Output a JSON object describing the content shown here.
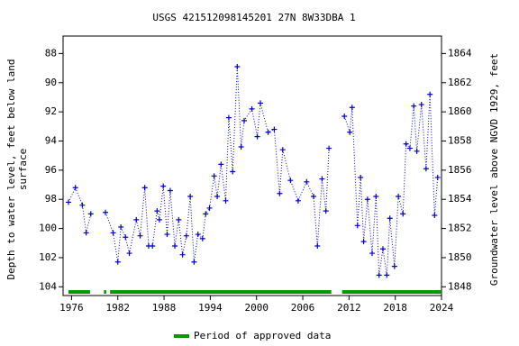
{
  "chart_data": {
    "type": "line",
    "title": "USGS 421512098145201  27N  8W33DBA 1",
    "ylabel": [
      "Depth to water level, feet below land",
      "surface"
    ],
    "y2label": "Groundwater level above NGVD 1929, feet",
    "xlim": [
      1974.9,
      2024.0
    ],
    "xticks": [
      1976,
      1982,
      1988,
      1994,
      2000,
      2006,
      2012,
      2018,
      2024
    ],
    "ylim": [
      104.6,
      86.8
    ],
    "yticks": [
      88,
      90,
      92,
      94,
      96,
      98,
      100,
      102,
      104
    ],
    "y2lim": [
      1847.4,
      1865.2
    ],
    "y2ticks": [
      1848,
      1850,
      1852,
      1854,
      1856,
      1858,
      1860,
      1862,
      1864
    ],
    "x": [
      1975.6,
      1976.5,
      1977.4,
      1977.9,
      1978.5,
      1979.5,
      1980.4,
      1981.4,
      1982.0,
      1982.4,
      1983.0,
      1983.5,
      1984.4,
      1984.9,
      1985.5,
      1986.0,
      1986.5,
      1987.1,
      1987.4,
      1987.9,
      1988.4,
      1988.8,
      1989.4,
      1989.9,
      1990.4,
      1990.9,
      1991.4,
      1991.9,
      1992.4,
      1993.0,
      1993.4,
      1993.9,
      1994.5,
      1994.9,
      1995.4,
      1996.0,
      1996.4,
      1996.9,
      1997.5,
      1998.0,
      1998.4,
      1999.4,
      2000.1,
      2000.5,
      2001.5,
      2002.3,
      2003.0,
      2003.4,
      2004.4,
      2005.4,
      2006.5,
      2007.4,
      2007.9,
      2008.5,
      2009.0,
      2009.4,
      2010.5,
      2011.4,
      2012.1,
      2012.4,
      2013.1,
      2013.5,
      2013.9,
      2014.4,
      2015.0,
      2015.5,
      2015.9,
      2016.4,
      2016.9,
      2017.3,
      2017.9,
      2018.4,
      2019.0,
      2019.4,
      2019.9,
      2020.4,
      2020.8,
      2021.4,
      2022.0,
      2022.5,
      2023.1,
      2023.5
    ],
    "series": [
      {
        "name": "Depth to water level",
        "color": "#0000cc",
        "values": [
          98.2,
          97.2,
          98.4,
          100.3,
          99.0,
          null,
          98.9,
          100.3,
          102.3,
          99.9,
          100.6,
          101.7,
          99.4,
          100.5,
          97.2,
          101.2,
          101.2,
          98.8,
          99.4,
          97.1,
          100.4,
          97.4,
          101.2,
          99.4,
          101.8,
          100.5,
          97.8,
          102.3,
          100.4,
          100.7,
          99.0,
          98.6,
          96.4,
          97.8,
          95.6,
          98.1,
          92.4,
          96.1,
          88.9,
          94.4,
          92.6,
          91.8,
          93.7,
          91.4,
          93.4,
          93.2,
          97.6,
          94.6,
          96.7,
          98.1,
          96.8,
          97.8,
          101.2,
          96.6,
          98.8,
          94.5,
          null,
          92.3,
          93.4,
          91.7,
          99.8,
          96.5,
          100.9,
          98.0,
          101.7,
          97.8,
          103.2,
          101.4,
          103.2,
          99.3,
          102.6,
          97.8,
          99.0,
          94.2,
          94.5,
          91.6,
          94.7,
          91.5,
          95.9,
          90.8,
          99.1,
          96.5
        ]
      }
    ],
    "approved": {
      "name": "Period of approved data",
      "color": "#009900",
      "periods": [
        [
          1975.6,
          1978.4
        ],
        [
          1980.2,
          1980.5
        ],
        [
          1981.0,
          2009.7
        ],
        [
          2011.1,
          2024.0
        ]
      ]
    }
  }
}
